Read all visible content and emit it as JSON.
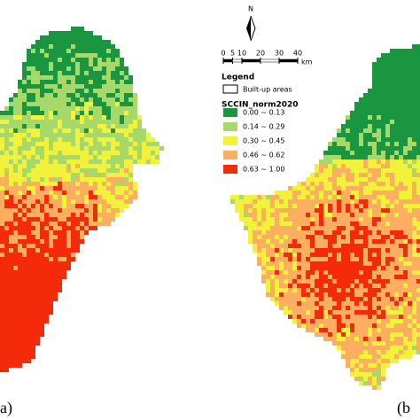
{
  "north_arrow": {
    "label": "N"
  },
  "scale_bar": {
    "ticks": [
      0,
      5,
      10,
      20,
      30,
      40
    ],
    "unit": "km"
  },
  "legend": {
    "title": "Legend",
    "boundary": "Built-up areas",
    "index_title": "SCCIN_norm2020",
    "classes": [
      {
        "label": "0.00 ~ 0.13",
        "color": "#1a9641"
      },
      {
        "label": "0.14 ~ 0.29",
        "color": "#a6d96a"
      },
      {
        "label": "0.30 ~ 0.45",
        "color": "#f2f23a"
      },
      {
        "label": "0.46 ~ 0.62",
        "color": "#fdae61"
      },
      {
        "label": "0.63 ~ 1.00",
        "color": "#f52a0a"
      }
    ]
  },
  "panels": [
    {
      "label": "a)"
    },
    {
      "label": "(b"
    }
  ]
}
